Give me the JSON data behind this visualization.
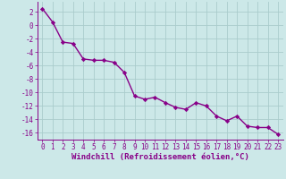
{
  "x": [
    0,
    1,
    2,
    3,
    4,
    5,
    6,
    7,
    8,
    9,
    10,
    11,
    12,
    13,
    14,
    15,
    16,
    17,
    18,
    19,
    20,
    21,
    22,
    23
  ],
  "y": [
    2.5,
    0.5,
    -2.5,
    -2.7,
    -5.0,
    -5.2,
    -5.2,
    -5.5,
    -7.0,
    -10.5,
    -11.0,
    -10.7,
    -11.5,
    -12.2,
    -12.5,
    -11.5,
    -12.0,
    -13.5,
    -14.2,
    -13.5,
    -15.0,
    -15.2,
    -15.2,
    -16.2
  ],
  "line_color": "#880088",
  "marker": "D",
  "markersize": 2.2,
  "linewidth": 1.0,
  "xlabel": "Windchill (Refroidissement éolien,°C)",
  "xlabel_fontsize": 6.5,
  "bg_color": "#cce8e8",
  "grid_color": "#aacccc",
  "ylim": [
    -17,
    3.5
  ],
  "xlim": [
    -0.5,
    23.5
  ],
  "yticks": [
    2,
    0,
    -2,
    -4,
    -6,
    -8,
    -10,
    -12,
    -14,
    -16
  ],
  "xticks": [
    0,
    1,
    2,
    3,
    4,
    5,
    6,
    7,
    8,
    9,
    10,
    11,
    12,
    13,
    14,
    15,
    16,
    17,
    18,
    19,
    20,
    21,
    22,
    23
  ],
  "tick_fontsize": 5.5,
  "tick_color": "#880088",
  "spine_color": "#880088"
}
